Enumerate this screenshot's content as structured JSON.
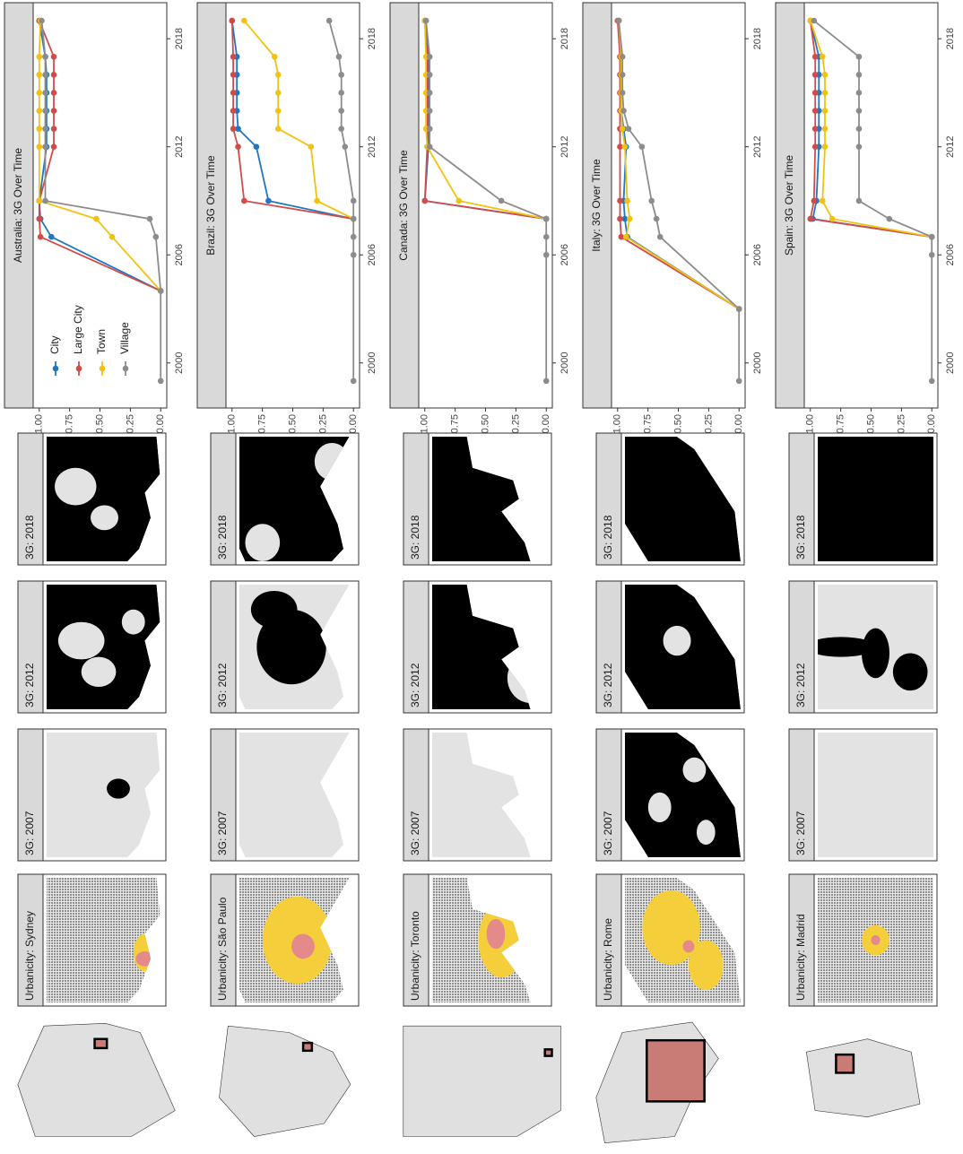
{
  "chart_data": [
    {
      "type": "line",
      "title": "Australia: 3G Over Time",
      "legend": "top-left",
      "grid": false,
      "x": [
        1999,
        2004,
        2007,
        2008,
        2009,
        2012,
        2013,
        2014,
        2015,
        2016,
        2017,
        2019
      ],
      "xlim": [
        1997.5,
        2020
      ],
      "xticks": [
        2000,
        2006,
        2012,
        2018
      ],
      "ylim": [
        -0.05,
        1.05
      ],
      "yticks": [
        {
          "value": 0,
          "label": "0.00"
        },
        {
          "value": 0.25,
          "label": "0.25"
        },
        {
          "value": 0.5,
          "label": "0.50"
        },
        {
          "value": 0.75,
          "label": "0.75"
        },
        {
          "value": 1,
          "label": "1.00"
        }
      ],
      "series": [
        {
          "name": "City",
          "color": "#1f77c4",
          "values": [
            null,
            0,
            0.9,
            0.99,
            1.0,
            0.94,
            0.94,
            0.94,
            0.94,
            0.94,
            0.95,
            1.0
          ]
        },
        {
          "name": "Large City",
          "color": "#d24b4b",
          "values": [
            null,
            0,
            0.99,
            1.0,
            1.0,
            0.88,
            0.88,
            0.88,
            0.88,
            0.88,
            0.88,
            1.0
          ]
        },
        {
          "name": "Town",
          "color": "#f2c20f",
          "values": [
            null,
            0,
            0.4,
            0.53,
            1.0,
            1.0,
            1.0,
            1.0,
            1.0,
            1.0,
            1.0,
            0.99
          ]
        },
        {
          "name": "Village",
          "color": "#8c8c8c",
          "values": [
            0,
            0,
            0.04,
            0.09,
            0.95,
            0.95,
            0.95,
            0.95,
            0.95,
            0.95,
            0.95,
            0.98
          ]
        }
      ]
    },
    {
      "type": "line",
      "title": "Brazil: 3G Over Time",
      "legend": "none",
      "grid": false,
      "x": [
        1999,
        2006,
        2007,
        2008,
        2009,
        2012,
        2013,
        2014,
        2015,
        2016,
        2017,
        2019
      ],
      "xlim": [
        1997.5,
        2020
      ],
      "xticks": [
        2000,
        2006,
        2012,
        2018
      ],
      "ylim": [
        -0.05,
        1.05
      ],
      "yticks": [
        {
          "value": 0,
          "label": "0.00"
        },
        {
          "value": 0.25,
          "label": "0.25"
        },
        {
          "value": 0.5,
          "label": "0.50"
        },
        {
          "value": 0.75,
          "label": "0.75"
        },
        {
          "value": 1,
          "label": "1.00"
        }
      ],
      "series": [
        {
          "name": "City",
          "color": "#1f77c4",
          "values": [
            null,
            null,
            null,
            0,
            0.7,
            0.8,
            0.95,
            0.96,
            0.96,
            0.96,
            0.96,
            1.0
          ]
        },
        {
          "name": "Large City",
          "color": "#d24b4b",
          "values": [
            null,
            null,
            null,
            0,
            0.9,
            0.95,
            0.99,
            0.99,
            0.99,
            0.99,
            0.99,
            1.0
          ]
        },
        {
          "name": "Town",
          "color": "#f2c20f",
          "values": [
            null,
            null,
            null,
            0,
            0.3,
            0.35,
            0.62,
            0.62,
            0.62,
            0.62,
            0.65,
            0.9
          ]
        },
        {
          "name": "Village",
          "color": "#8c8c8c",
          "values": [
            0,
            0,
            0,
            0,
            0,
            0.07,
            0.1,
            0.1,
            0.1,
            0.1,
            0.12,
            0.2
          ]
        }
      ]
    },
    {
      "type": "line",
      "title": "Canada: 3G Over Time",
      "legend": "none",
      "grid": false,
      "x": [
        1999,
        2006,
        2007,
        2008,
        2009,
        2012,
        2013,
        2014,
        2015,
        2016,
        2017,
        2019
      ],
      "xlim": [
        1997.5,
        2020
      ],
      "xticks": [
        2000,
        2006,
        2012,
        2018
      ],
      "ylim": [
        -0.05,
        1.05
      ],
      "yticks": [
        {
          "value": 0,
          "label": "0.00"
        },
        {
          "value": 0.25,
          "label": "0.25"
        },
        {
          "value": 0.5,
          "label": "0.50"
        },
        {
          "value": 0.75,
          "label": "0.75"
        },
        {
          "value": 1,
          "label": "1.00"
        }
      ],
      "series": [
        {
          "name": "City",
          "color": "#1f77c4",
          "values": [
            null,
            null,
            null,
            0,
            1.0,
            0.97,
            0.97,
            0.97,
            0.97,
            0.97,
            0.97,
            1.0
          ]
        },
        {
          "name": "Large City",
          "color": "#d24b4b",
          "values": [
            null,
            null,
            null,
            0,
            1.0,
            0.98,
            0.98,
            0.98,
            0.98,
            0.98,
            0.98,
            1.0
          ]
        },
        {
          "name": "Town",
          "color": "#f2c20f",
          "values": [
            null,
            null,
            null,
            0,
            0.72,
            0.98,
            0.99,
            0.99,
            0.99,
            0.99,
            0.99,
            1.0
          ]
        },
        {
          "name": "Village",
          "color": "#8c8c8c",
          "values": [
            0,
            0,
            0,
            0,
            0.37,
            0.96,
            0.96,
            0.96,
            0.96,
            0.96,
            0.96,
            0.99
          ]
        }
      ]
    },
    {
      "type": "line",
      "title": "Italy: 3G Over Time",
      "legend": "none",
      "grid": false,
      "x": [
        1999,
        2003,
        2007,
        2008,
        2009,
        2012,
        2013,
        2014,
        2015,
        2016,
        2017,
        2019
      ],
      "xlim": [
        1997.5,
        2020
      ],
      "xticks": [
        2000,
        2006,
        2012,
        2018
      ],
      "ylim": [
        -0.05,
        1.05
      ],
      "yticks": [
        {
          "value": 0,
          "label": "0.00"
        },
        {
          "value": 0.25,
          "label": "0.25"
        },
        {
          "value": 0.5,
          "label": "0.50"
        },
        {
          "value": 0.75,
          "label": "0.75"
        },
        {
          "value": 1,
          "label": "1.00"
        }
      ],
      "series": [
        {
          "name": "City",
          "color": "#1f77c4",
          "values": [
            null,
            0,
            0.92,
            0.94,
            0.95,
            0.93,
            0.95,
            0.97,
            0.97,
            0.97,
            0.97,
            0.99
          ]
        },
        {
          "name": "Large City",
          "color": "#d24b4b",
          "values": [
            null,
            0,
            0.97,
            0.98,
            0.98,
            0.98,
            0.98,
            0.98,
            0.98,
            0.98,
            0.98,
            1.0
          ]
        },
        {
          "name": "Town",
          "color": "#f2c20f",
          "values": [
            null,
            0,
            0.93,
            0.9,
            0.92,
            0.94,
            0.96,
            0.97,
            0.97,
            0.97,
            0.97,
            0.99
          ]
        },
        {
          "name": "Village",
          "color": "#8c8c8c",
          "values": [
            0,
            0,
            0.65,
            0.68,
            0.72,
            0.8,
            0.91,
            0.95,
            0.96,
            0.96,
            0.96,
            0.99
          ]
        }
      ]
    },
    {
      "type": "line",
      "title": "Spain: 3G Over Time",
      "legend": "none",
      "grid": false,
      "x": [
        1999,
        2006,
        2007,
        2008,
        2009,
        2012,
        2013,
        2014,
        2015,
        2016,
        2017,
        2019
      ],
      "xlim": [
        1997.5,
        2020
      ],
      "xticks": [
        2000,
        2006,
        2012,
        2018
      ],
      "ylim": [
        -0.05,
        1.05
      ],
      "yticks": [
        {
          "value": 0,
          "label": "0.00"
        },
        {
          "value": 0.25,
          "label": "0.25"
        },
        {
          "value": 0.5,
          "label": "0.50"
        },
        {
          "value": 0.75,
          "label": "0.75"
        },
        {
          "value": 1,
          "label": "1.00"
        }
      ],
      "series": [
        {
          "name": "City",
          "color": "#1f77c4",
          "values": [
            null,
            null,
            0,
            0.98,
            0.95,
            0.93,
            0.93,
            0.93,
            0.93,
            0.93,
            0.93,
            1.0
          ]
        },
        {
          "name": "Large City",
          "color": "#d24b4b",
          "values": [
            null,
            null,
            0,
            1.0,
            0.97,
            0.96,
            0.96,
            0.96,
            0.96,
            0.96,
            0.96,
            1.0
          ]
        },
        {
          "name": "Town",
          "color": "#f2c20f",
          "values": [
            null,
            null,
            0,
            0.82,
            0.9,
            0.88,
            0.88,
            0.88,
            0.88,
            0.88,
            0.9,
            1.0
          ]
        },
        {
          "name": "Village",
          "color": "#8c8c8c",
          "values": [
            0,
            0,
            0,
            0.35,
            0.6,
            0.6,
            0.6,
            0.6,
            0.6,
            0.6,
            0.6,
            0.97
          ]
        }
      ]
    }
  ],
  "panels": [
    {
      "urbanicity": "Urbanicity: Sydney",
      "years": [
        "3G: 2007",
        "3G: 2012",
        "3G: 2018"
      ]
    },
    {
      "urbanicity": "Urbanicity: São Paulo",
      "years": [
        "3G: 2007",
        "3G: 2012",
        "3G: 2018"
      ]
    },
    {
      "urbanicity": "Urbanicity: Toronto",
      "years": [
        "3G: 2007",
        "3G: 2012",
        "3G: 2018"
      ]
    },
    {
      "urbanicity": "Urbanicity: Rome",
      "years": [
        "3G: 2007",
        "3G: 2012",
        "3G: 2018"
      ]
    },
    {
      "urbanicity": "Urbanicity: Madrid",
      "years": [
        "3G: 2007",
        "3G: 2012",
        "3G: 2018"
      ]
    }
  ]
}
